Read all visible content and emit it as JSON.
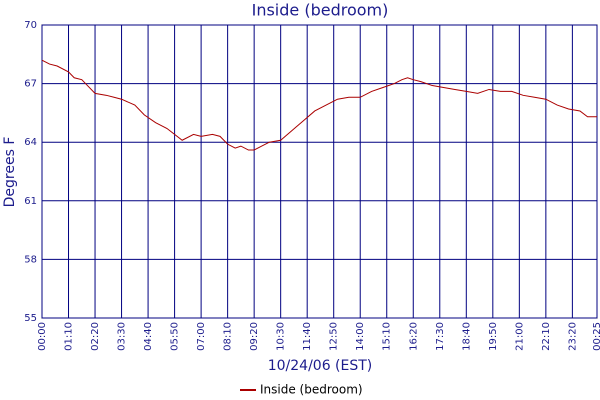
{
  "chart_data": {
    "type": "line",
    "title": "Inside (bedroom)",
    "x_label": "10/24/06 (EST)",
    "y_label": "Degrees F",
    "x": [
      0,
      20,
      40,
      70,
      85,
      105,
      120,
      140,
      170,
      190,
      210,
      245,
      270,
      300,
      330,
      350,
      370,
      400,
      420,
      450,
      470,
      490,
      510,
      525,
      545,
      560,
      580,
      600,
      630,
      660,
      690,
      720,
      750,
      780,
      810,
      840,
      870,
      900,
      930,
      950,
      965,
      980,
      1000,
      1030,
      1060,
      1090,
      1120,
      1150,
      1180,
      1210,
      1240,
      1270,
      1300,
      1330,
      1360,
      1390,
      1420,
      1440,
      1465
    ],
    "series": [
      {
        "name": "Inside (bedroom)",
        "color": "#aa0000",
        "values": [
          68.2,
          68.0,
          67.9,
          67.6,
          67.3,
          67.2,
          66.9,
          66.5,
          66.4,
          66.3,
          66.2,
          65.9,
          65.4,
          65.0,
          64.7,
          64.4,
          64.1,
          64.4,
          64.3,
          64.4,
          64.3,
          63.9,
          63.7,
          63.8,
          63.6,
          63.6,
          63.8,
          64.0,
          64.1,
          64.6,
          65.1,
          65.6,
          65.9,
          66.2,
          66.3,
          66.3,
          66.6,
          66.8,
          67.0,
          67.2,
          67.3,
          67.2,
          67.1,
          66.9,
          66.8,
          66.7,
          66.6,
          66.5,
          66.7,
          66.6,
          66.6,
          66.4,
          66.3,
          66.2,
          65.9,
          65.7,
          65.6,
          65.3,
          65.3
        ]
      }
    ],
    "xlim": [
      0,
      1465
    ],
    "ylim": [
      55,
      70
    ],
    "yticks": [
      55,
      58,
      61,
      64,
      67,
      70
    ],
    "xticks": [
      {
        "value": 0,
        "label": "00:00"
      },
      {
        "value": 70,
        "label": "01:10"
      },
      {
        "value": 140,
        "label": "02:20"
      },
      {
        "value": 210,
        "label": "03:30"
      },
      {
        "value": 280,
        "label": "04:40"
      },
      {
        "value": 350,
        "label": "05:50"
      },
      {
        "value": 420,
        "label": "07:00"
      },
      {
        "value": 490,
        "label": "08:10"
      },
      {
        "value": 560,
        "label": "09:20"
      },
      {
        "value": 630,
        "label": "10:30"
      },
      {
        "value": 700,
        "label": "11:40"
      },
      {
        "value": 770,
        "label": "12:50"
      },
      {
        "value": 840,
        "label": "14:00"
      },
      {
        "value": 910,
        "label": "15:10"
      },
      {
        "value": 980,
        "label": "16:20"
      },
      {
        "value": 1050,
        "label": "17:30"
      },
      {
        "value": 1120,
        "label": "18:40"
      },
      {
        "value": 1190,
        "label": "19:50"
      },
      {
        "value": 1260,
        "label": "21:00"
      },
      {
        "value": 1330,
        "label": "22:10"
      },
      {
        "value": 1400,
        "label": "23:20"
      },
      {
        "value": 1465,
        "label": "00:25"
      }
    ],
    "grid": true
  }
}
